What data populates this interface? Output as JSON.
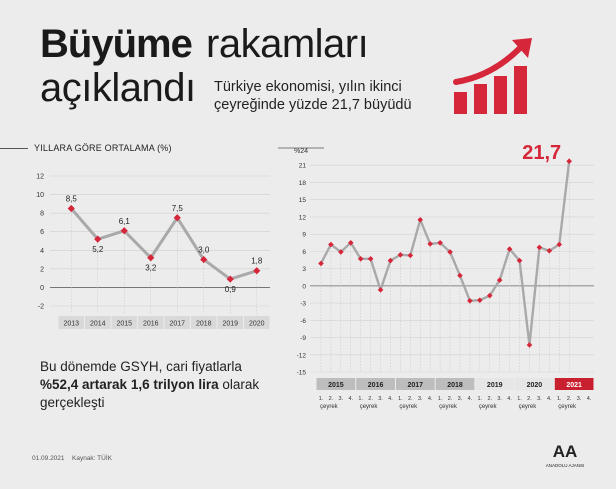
{
  "header": {
    "title_bold": "Büyüme",
    "title_rest": "rakamları",
    "title_line2": "açıklandı",
    "subtitle_line1": "Türkiye ekonomisi, yılın ikinci",
    "subtitle_line2": "çeyreğinde yüzde 21,7 büyüdü"
  },
  "footnote": {
    "part1": "Bu dönemde GSYH, cari fiyatlarla ",
    "part_bold": "%52,4 artarak 1,6 trilyon lira",
    "part2": " olarak gerçekleşti"
  },
  "footer": {
    "date": "01.09.2021",
    "source": "Kaynak: TÜİK",
    "agency": "ANADOLU AJANSI",
    "logo_letters": "AA"
  },
  "colors": {
    "accent": "#d6263a",
    "line": "#a9a9a9",
    "axis_band": "#4d4d4d",
    "highlight_band": "#c8202f"
  },
  "chart_data": [
    {
      "type": "line",
      "title": "YILLARA GÖRE ORTALAMA (%)",
      "categories": [
        "2013",
        "2014",
        "2015",
        "2016",
        "2017",
        "2018",
        "2019",
        "2020"
      ],
      "values": [
        8.5,
        5.2,
        6.1,
        3.2,
        7.5,
        3.0,
        0.9,
        1.8
      ],
      "value_labels": [
        "8,5",
        "5,2",
        "6,1",
        "3,2",
        "7,5",
        "3,0",
        "0,9",
        "1,8"
      ],
      "ylim": [
        -2,
        12
      ],
      "yticks": [
        -2,
        0,
        2,
        4,
        6,
        8,
        10,
        12
      ],
      "grid": true,
      "legend": "none"
    },
    {
      "type": "line",
      "ylabel": "%24",
      "quarter_labels": [
        "1.",
        "2.",
        "3.",
        "4."
      ],
      "period_word": "çeyrek",
      "years": [
        "2015",
        "2016",
        "2017",
        "2018",
        "2019",
        "2020",
        "2021"
      ],
      "values": [
        3.9,
        7.2,
        5.9,
        7.5,
        4.7,
        4.7,
        -0.7,
        4.4,
        5.4,
        5.3,
        11.5,
        7.3,
        7.5,
        5.9,
        1.8,
        -2.6,
        -2.5,
        -1.7,
        1.0,
        6.4,
        4.4,
        -10.3,
        6.7,
        6.1,
        7.2,
        21.7
      ],
      "highlight_label": "21,7",
      "ylim": [
        -15,
        24
      ],
      "yticks": [
        -15,
        -12,
        -9,
        -6,
        -3,
        0,
        3,
        6,
        9,
        12,
        15,
        18,
        21
      ],
      "grid": true,
      "legend": "none"
    }
  ]
}
